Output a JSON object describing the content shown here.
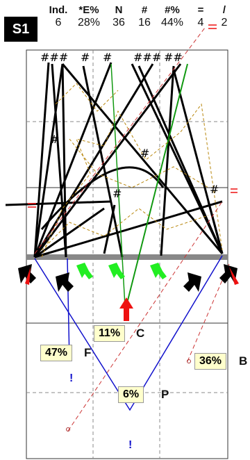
{
  "set_label": "S1",
  "stats": [
    {
      "header": "Ind.",
      "value": "6"
    },
    {
      "header": "*E%",
      "value": "28%"
    },
    {
      "header": "N",
      "value": "36"
    },
    {
      "header": "#",
      "value": "16"
    },
    {
      "header": "#%",
      "value": "44%"
    },
    {
      "header": "=",
      "value": "4"
    },
    {
      "header": "/",
      "value": "2"
    }
  ],
  "zones": [
    {
      "pct": "11%",
      "label": "C"
    },
    {
      "pct": "47%",
      "label": "F"
    },
    {
      "pct": "36%",
      "label": "B"
    },
    {
      "pct": "6%",
      "label": "P"
    }
  ],
  "marks": {
    "top_marks": [
      "###",
      "#",
      "#",
      "###",
      "##"
    ],
    "inner_marks": [
      "#",
      "#",
      "#",
      "#"
    ],
    "exclaim": "!"
  },
  "colors": {
    "black": "#000000",
    "red": "#ee1111",
    "green": "#11aa11",
    "blue": "#1111cc",
    "gold": "#b8860b",
    "brown": "#aa3333"
  }
}
